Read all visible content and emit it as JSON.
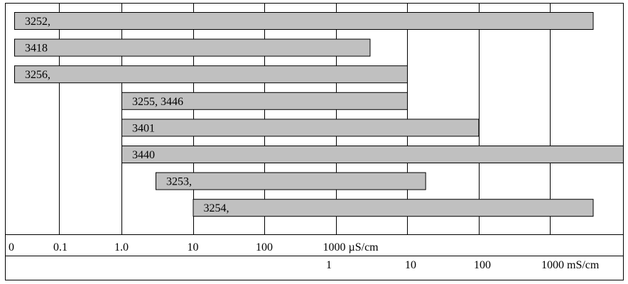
{
  "chart_data": {
    "type": "bar",
    "orientation": "horizontal-range",
    "x_scale": "log",
    "xlabel": "",
    "ylabel": "",
    "grid": true,
    "bar_color": "#c0c0c0",
    "bar_stroke": "#000000",
    "axis_uS": {
      "unit": "µS/cm",
      "ticks": [
        {
          "label": "0",
          "value": 0.01
        },
        {
          "label": "0.1",
          "value": 0.1
        },
        {
          "label": "1.0",
          "value": 1
        },
        {
          "label": "10",
          "value": 10
        },
        {
          "label": "100",
          "value": 100
        },
        {
          "label": "1000 µS/cm",
          "value": 1000
        }
      ]
    },
    "axis_mS": {
      "unit": "mS/cm",
      "ticks": [
        {
          "label": "1",
          "value": 1000
        },
        {
          "label": "10",
          "value": 10000
        },
        {
          "label": "100",
          "value": 100000
        },
        {
          "label": "1000 mS/cm",
          "value": 1000000
        }
      ]
    },
    "xlim_uS": [
      0.01,
      5000000
    ],
    "series": [
      {
        "label": "3252,",
        "min_uS": 0.01,
        "max_uS": 4000000
      },
      {
        "label": "3418",
        "min_uS": 0.01,
        "max_uS": 3000
      },
      {
        "label": "3256,",
        "min_uS": 0.01,
        "max_uS": 10000
      },
      {
        "label": "3255, 3446",
        "min_uS": 1,
        "max_uS": 10000
      },
      {
        "label": "3401",
        "min_uS": 1,
        "max_uS": 100000
      },
      {
        "label": "3440",
        "min_uS": 1,
        "max_uS": 5000000
      },
      {
        "label": "3253,",
        "min_uS": 3,
        "max_uS": 18000
      },
      {
        "label": "3254,",
        "min_uS": 10,
        "max_uS": 4000000
      }
    ]
  }
}
